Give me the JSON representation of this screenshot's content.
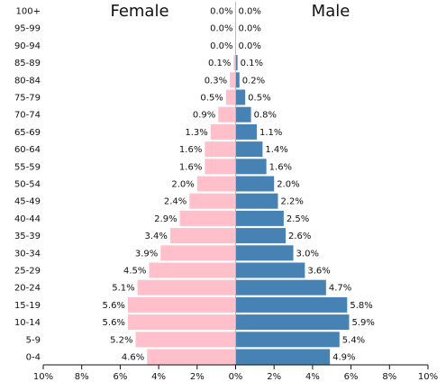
{
  "chart_data": {
    "type": "bar",
    "orientation": "horizontal",
    "layout": "population-pyramid",
    "categories": [
      "100+",
      "95-99",
      "90-94",
      "85-89",
      "80-84",
      "75-79",
      "70-74",
      "65-69",
      "60-64",
      "55-59",
      "50-54",
      "45-49",
      "40-44",
      "35-39",
      "30-34",
      "25-29",
      "20-24",
      "15-19",
      "10-14",
      "5-9",
      "0-4"
    ],
    "series": [
      {
        "name": "Female",
        "side": "left",
        "color": "#ffc0cb",
        "values": [
          0.0,
          0.0,
          0.0,
          0.1,
          0.3,
          0.5,
          0.9,
          1.3,
          1.6,
          1.6,
          2.0,
          2.4,
          2.9,
          3.4,
          3.9,
          4.5,
          5.1,
          5.6,
          5.6,
          5.2,
          4.6
        ],
        "labels": [
          "0.0%",
          "0.0%",
          "0.0%",
          "0.1%",
          "0.3%",
          "0.5%",
          "0.9%",
          "1.3%",
          "1.6%",
          "1.6%",
          "2.0%",
          "2.4%",
          "2.9%",
          "3.4%",
          "3.9%",
          "4.5%",
          "5.1%",
          "5.6%",
          "5.6%",
          "5.2%",
          "4.6%"
        ]
      },
      {
        "name": "Male",
        "side": "right",
        "color": "#4682b4",
        "values": [
          0.0,
          0.0,
          0.0,
          0.1,
          0.2,
          0.5,
          0.8,
          1.1,
          1.4,
          1.6,
          2.0,
          2.2,
          2.5,
          2.6,
          3.0,
          3.6,
          4.7,
          5.8,
          5.9,
          5.4,
          4.9
        ],
        "labels": [
          "0.0%",
          "0.0%",
          "0.0%",
          "0.1%",
          "0.2%",
          "0.5%",
          "0.8%",
          "1.1%",
          "1.4%",
          "1.6%",
          "2.0%",
          "2.2%",
          "2.5%",
          "2.6%",
          "3.0%",
          "3.6%",
          "4.7%",
          "5.8%",
          "5.9%",
          "5.4%",
          "4.9%"
        ]
      }
    ],
    "xlim": [
      -10,
      10
    ],
    "xticks": [
      -10,
      -8,
      -6,
      -4,
      -2,
      0,
      2,
      4,
      6,
      8,
      10
    ],
    "xtick_labels": [
      "10%",
      "8%",
      "6%",
      "4%",
      "2%",
      "0%",
      "2%",
      "4%",
      "6%",
      "8%",
      "10%"
    ],
    "grid": false
  }
}
